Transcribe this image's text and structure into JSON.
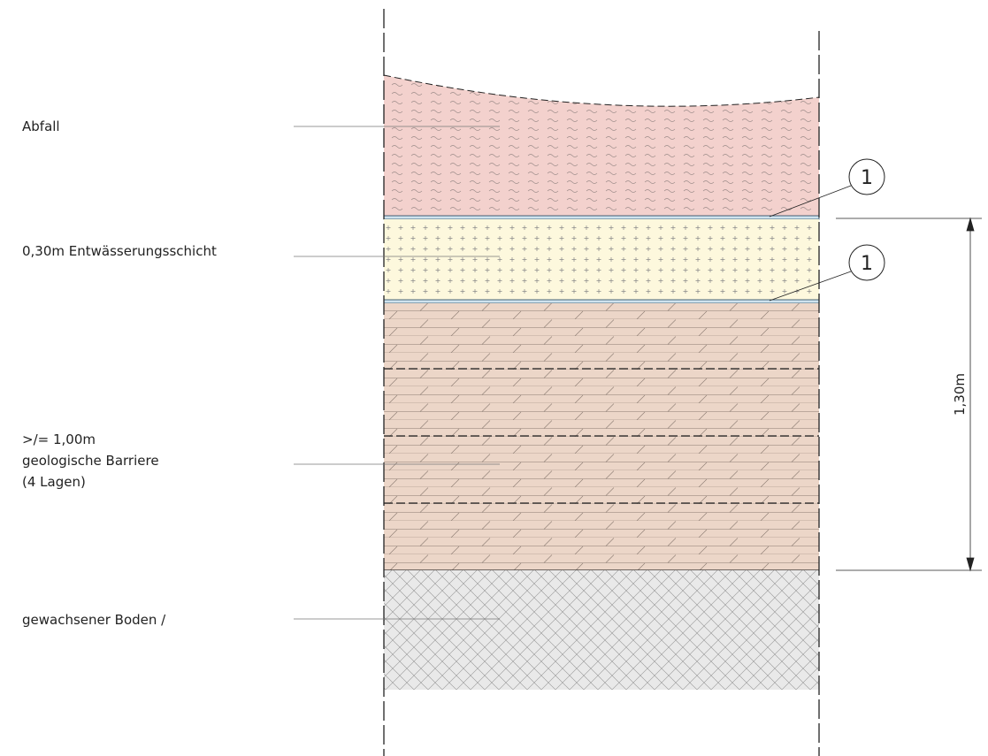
{
  "layers": [
    {
      "label": "Abfall"
    },
    {
      "label": "0,30m Entwässerungsschicht"
    },
    {
      "label": [
        ">/= 1,00m",
        "geologische Barriere",
        "(4 Lagen)"
      ]
    },
    {
      "label": "gewachsener Boden /"
    }
  ],
  "callouts": [
    "1",
    "1"
  ],
  "dimension": "1,30m"
}
